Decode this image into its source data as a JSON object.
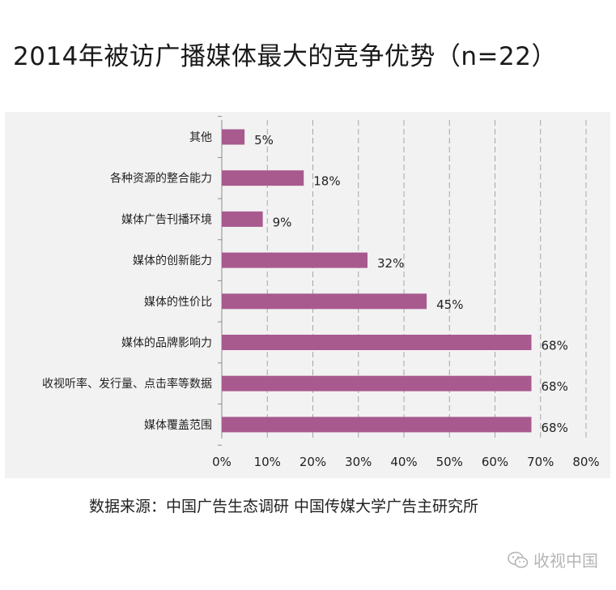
{
  "title": "2014年被访广播媒体最大的竞争优势（n=22）",
  "source": "数据来源：中国广告生态调研 中国传媒大学广告主研究所",
  "watermark": {
    "text": "收视中国",
    "icon": "wechat-icon"
  },
  "colors": {
    "bar": "#a85a8f",
    "grid": "#a6a6a6",
    "panel": "#f2f2f2",
    "text": "#222222"
  },
  "chart_data": {
    "type": "bar",
    "orientation": "horizontal",
    "categories": [
      "其他",
      "各种资源的整合能力",
      "媒体广告刊播环境",
      "媒体的创新能力",
      "媒体的性价比",
      "媒体的品牌影响力",
      "收视听率、发行量、点击率等数据",
      "媒体覆盖范围"
    ],
    "values": [
      5,
      18,
      9,
      32,
      45,
      68,
      68,
      68
    ],
    "value_labels": [
      "5%",
      "18%",
      "9%",
      "32%",
      "45%",
      "68%",
      "68%",
      "68%"
    ],
    "xlim": [
      0,
      80
    ],
    "xticks": [
      0,
      10,
      20,
      30,
      40,
      50,
      60,
      70,
      80
    ],
    "xtick_labels": [
      "0%",
      "10%",
      "20%",
      "30%",
      "40%",
      "50%",
      "60%",
      "70%",
      "80%"
    ],
    "grid": true,
    "grid_style": "dashed",
    "legend": "none"
  }
}
